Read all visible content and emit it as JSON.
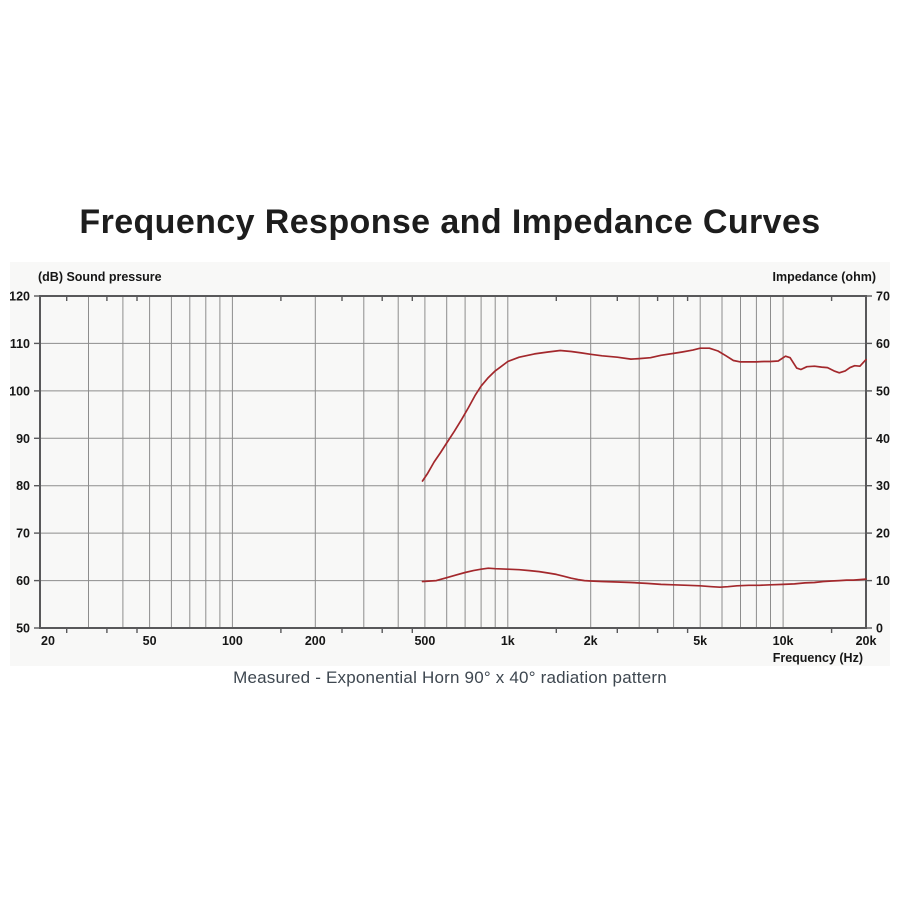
{
  "chart_data": {
    "type": "line",
    "title": "Frequency Response and Impedance Curves",
    "caption": "Measured - Exponential Horn 90° x 40° radiation pattern",
    "background": "#f8f8f7",
    "grid_color": "#8d8d8d",
    "frame_color": "#58585a",
    "x_axis": {
      "label": "Frequency  (Hz)",
      "scale": "log",
      "min": 20,
      "max": 20000,
      "ticks": [
        {
          "value": 20,
          "label": "20"
        },
        {
          "value": 50,
          "label": "50"
        },
        {
          "value": 100,
          "label": "100"
        },
        {
          "value": 200,
          "label": "200"
        },
        {
          "value": 500,
          "label": "500"
        },
        {
          "value": 1000,
          "label": "1k"
        },
        {
          "value": 2000,
          "label": "2k"
        },
        {
          "value": 5000,
          "label": "5k"
        },
        {
          "value": 10000,
          "label": "10k"
        },
        {
          "value": 20000,
          "label": "20k"
        }
      ],
      "gridlines": [
        30,
        40,
        50,
        60,
        70,
        80,
        90,
        100,
        200,
        300,
        400,
        500,
        600,
        700,
        800,
        900,
        1000,
        2000,
        3000,
        4000,
        5000,
        6000,
        7000,
        8000,
        9000,
        10000
      ],
      "minor_ticks": [
        25,
        35,
        45,
        150,
        250,
        350,
        450,
        1500,
        2500,
        3500,
        4500,
        15000
      ]
    },
    "y_left": {
      "label": "(dB)  Sound pressure",
      "min": 50,
      "max": 120,
      "step": 10,
      "ticks": [
        120,
        110,
        100,
        90,
        80,
        70,
        60,
        50
      ],
      "gridlines": [
        60,
        70,
        80,
        90,
        100,
        110
      ]
    },
    "y_right": {
      "label": "Impedance  (ohm)",
      "min": 0,
      "max": 70,
      "step": 10,
      "ticks": [
        70,
        60,
        50,
        40,
        30,
        20,
        10,
        0
      ]
    },
    "series": [
      {
        "name": "sound-pressure-response",
        "axis": "left",
        "unit": "dB",
        "color": "#a3282c",
        "points": [
          [
            490,
            81
          ],
          [
            510,
            82.5
          ],
          [
            540,
            85
          ],
          [
            570,
            87
          ],
          [
            600,
            89
          ],
          [
            640,
            91.5
          ],
          [
            680,
            94
          ],
          [
            720,
            96.5
          ],
          [
            760,
            99
          ],
          [
            800,
            101
          ],
          [
            850,
            102.8
          ],
          [
            900,
            104.2
          ],
          [
            950,
            105.2
          ],
          [
            1000,
            106.2
          ],
          [
            1100,
            107.1
          ],
          [
            1250,
            107.8
          ],
          [
            1400,
            108.2
          ],
          [
            1550,
            108.5
          ],
          [
            1700,
            108.3
          ],
          [
            1850,
            108
          ],
          [
            2000,
            107.7
          ],
          [
            2200,
            107.4
          ],
          [
            2500,
            107.1
          ],
          [
            2800,
            106.7
          ],
          [
            3000,
            106.8
          ],
          [
            3300,
            107
          ],
          [
            3600,
            107.5
          ],
          [
            4000,
            107.9
          ],
          [
            4300,
            108.2
          ],
          [
            4700,
            108.6
          ],
          [
            5000,
            109
          ],
          [
            5400,
            109
          ],
          [
            5800,
            108.4
          ],
          [
            6200,
            107.4
          ],
          [
            6600,
            106.4
          ],
          [
            7000,
            106.1
          ],
          [
            7500,
            106.1
          ],
          [
            8000,
            106.1
          ],
          [
            8500,
            106.2
          ],
          [
            9000,
            106.2
          ],
          [
            9600,
            106.3
          ],
          [
            10200,
            107.3
          ],
          [
            10600,
            107
          ],
          [
            11200,
            104.8
          ],
          [
            11600,
            104.5
          ],
          [
            12200,
            105.1
          ],
          [
            13000,
            105.2
          ],
          [
            13800,
            105
          ],
          [
            14500,
            104.9
          ],
          [
            15300,
            104.2
          ],
          [
            16000,
            103.8
          ],
          [
            16800,
            104.2
          ],
          [
            17500,
            104.9
          ],
          [
            18200,
            105.3
          ],
          [
            19000,
            105.2
          ],
          [
            20000,
            106.6
          ]
        ]
      },
      {
        "name": "impedance",
        "axis": "right",
        "unit": "ohm",
        "color": "#a3282c",
        "points": [
          [
            490,
            9.8
          ],
          [
            550,
            10
          ],
          [
            600,
            10.6
          ],
          [
            650,
            11.2
          ],
          [
            700,
            11.7
          ],
          [
            750,
            12.1
          ],
          [
            800,
            12.4
          ],
          [
            850,
            12.6
          ],
          [
            900,
            12.5
          ],
          [
            1000,
            12.4
          ],
          [
            1100,
            12.3
          ],
          [
            1200,
            12.1
          ],
          [
            1300,
            11.9
          ],
          [
            1400,
            11.6
          ],
          [
            1500,
            11.3
          ],
          [
            1600,
            10.9
          ],
          [
            1700,
            10.5
          ],
          [
            1800,
            10.2
          ],
          [
            1900,
            10
          ],
          [
            2000,
            9.9
          ],
          [
            2200,
            9.8
          ],
          [
            2500,
            9.7
          ],
          [
            2800,
            9.6
          ],
          [
            3200,
            9.4
          ],
          [
            3600,
            9.2
          ],
          [
            4000,
            9.1
          ],
          [
            4500,
            9
          ],
          [
            5000,
            8.9
          ],
          [
            5500,
            8.7
          ],
          [
            5900,
            8.6
          ],
          [
            6300,
            8.7
          ],
          [
            6800,
            8.9
          ],
          [
            7500,
            9
          ],
          [
            8200,
            9
          ],
          [
            9000,
            9.1
          ],
          [
            10000,
            9.2
          ],
          [
            11000,
            9.3
          ],
          [
            12000,
            9.5
          ],
          [
            13000,
            9.6
          ],
          [
            14000,
            9.8
          ],
          [
            15000,
            9.9
          ],
          [
            16000,
            10
          ],
          [
            17000,
            10.1
          ],
          [
            18000,
            10.1
          ],
          [
            19000,
            10.2
          ],
          [
            20000,
            10.3
          ]
        ]
      }
    ]
  }
}
